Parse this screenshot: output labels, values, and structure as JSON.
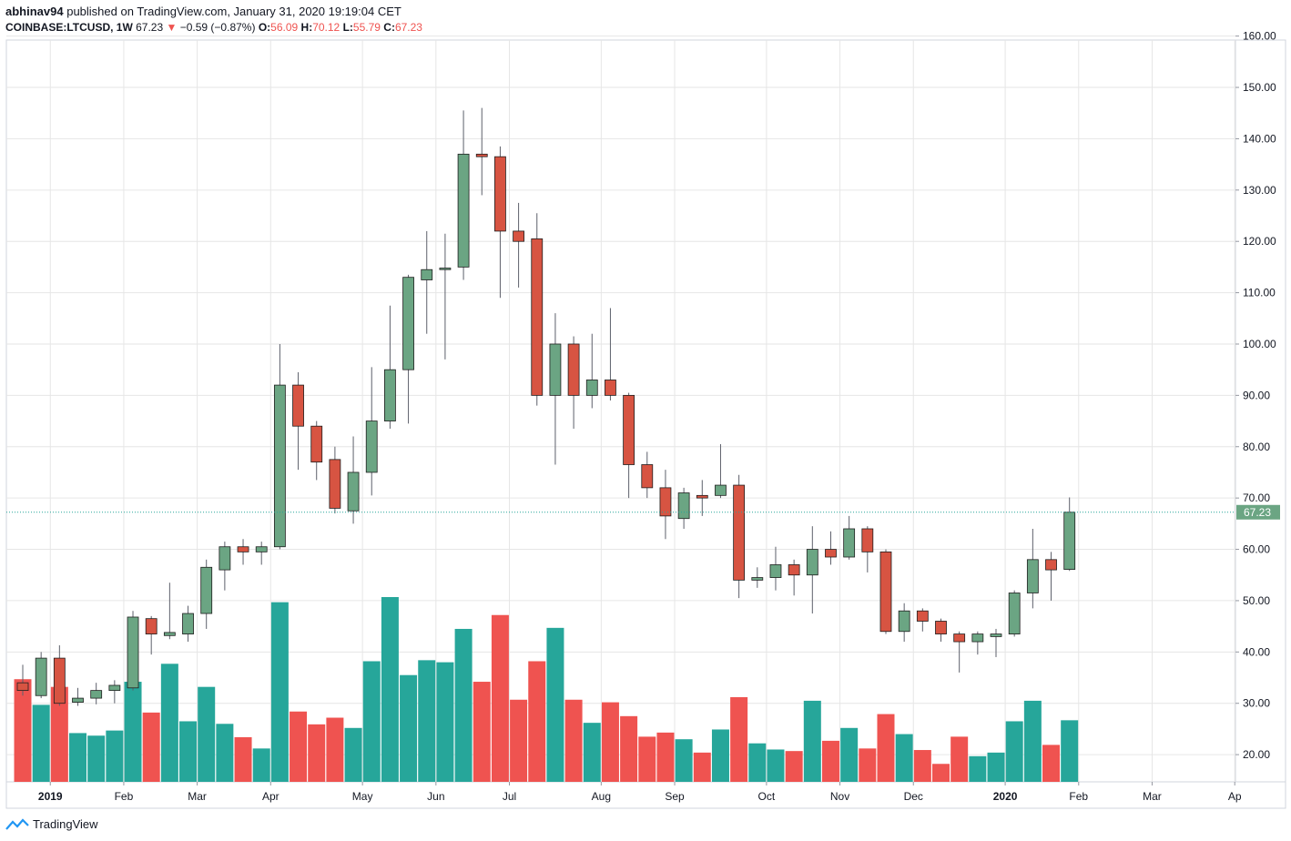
{
  "header": {
    "author": "abhinav94",
    "published_text": "published on TradingView.com, January 31, 2020 19:19:04 CET",
    "symbol": "COINBASE:LTCUSD, 1W",
    "last": "67.23",
    "change_arrow": "▼",
    "change": "−0.59 (−0.87%)",
    "o_label": "O:",
    "o": "56.09",
    "h_label": "H:",
    "h": "70.12",
    "l_label": "L:",
    "l": "55.79",
    "c_label": "C:",
    "c": "67.23"
  },
  "footer": {
    "brand": "TradingView",
    "icon": "tradingview-logo-icon"
  },
  "colors": {
    "up": "#6ba583",
    "down": "#d75442",
    "vol_up": "#26a69a",
    "vol_down": "#ef5350",
    "price_line": "#26a69a",
    "grid": "#e6e6e6"
  },
  "chart_data": {
    "type": "candlestick",
    "price_axis": {
      "ylim": [
        15,
        163
      ],
      "ticks": [
        20,
        30,
        40,
        50,
        60,
        70,
        80,
        90,
        100,
        110,
        120,
        130,
        140,
        150,
        160
      ],
      "tick_labels": [
        "20.00",
        "30.00",
        "40.00",
        "50.00",
        "60.00",
        "70.00",
        "80.00",
        "90.00",
        "100.00",
        "110.00",
        "120.00",
        "130.00",
        "140.00",
        "150.00",
        "160.00"
      ]
    },
    "current_price_label": "67.23",
    "current_price": 67.23,
    "x_labels": [
      {
        "label": "2019",
        "week": 1.5,
        "bold": true
      },
      {
        "label": "Feb",
        "week": 5.5
      },
      {
        "label": "Mar",
        "week": 9.5
      },
      {
        "label": "Apr",
        "week": 13.5
      },
      {
        "label": "May",
        "week": 18.5
      },
      {
        "label": "Jun",
        "week": 22.5
      },
      {
        "label": "Jul",
        "week": 26.5
      },
      {
        "label": "Aug",
        "week": 31.5
      },
      {
        "label": "Sep",
        "week": 35.5
      },
      {
        "label": "Oct",
        "week": 40.5
      },
      {
        "label": "Nov",
        "week": 44.5
      },
      {
        "label": "Dec",
        "week": 48.5
      },
      {
        "label": "2020",
        "week": 53.5,
        "bold": true
      },
      {
        "label": "Feb",
        "week": 57.5
      },
      {
        "label": "Mar",
        "week": 61.5
      },
      {
        "label": "Ap",
        "week": 66
      }
    ],
    "candles": [
      [
        34.0,
        37.5,
        31.5,
        32.5
      ],
      [
        31.5,
        40.0,
        31.0,
        38.8
      ],
      [
        38.8,
        41.3,
        29.5,
        30.0
      ],
      [
        30.2,
        33.0,
        29.5,
        31.0
      ],
      [
        31.0,
        34.0,
        29.8,
        32.5
      ],
      [
        32.5,
        34.5,
        30.0,
        33.5
      ],
      [
        33.0,
        48.0,
        32.5,
        46.8
      ],
      [
        46.5,
        47.0,
        39.5,
        43.5
      ],
      [
        43.2,
        53.5,
        42.5,
        43.8
      ],
      [
        43.5,
        49.0,
        42.0,
        47.5
      ],
      [
        47.5,
        58.0,
        44.5,
        56.5
      ],
      [
        56.0,
        61.5,
        52.0,
        60.5
      ],
      [
        60.5,
        62.0,
        57.0,
        59.5
      ],
      [
        59.5,
        61.5,
        57.0,
        60.5
      ],
      [
        60.5,
        100.0,
        60.0,
        92.0
      ],
      [
        92.0,
        94.5,
        75.5,
        84.0
      ],
      [
        84.0,
        85.0,
        73.5,
        77.0
      ],
      [
        77.5,
        80.0,
        67.0,
        68.0
      ],
      [
        67.5,
        82.0,
        65.0,
        75.0
      ],
      [
        75.0,
        95.5,
        70.5,
        85.0
      ],
      [
        85.0,
        107.5,
        83.5,
        95.0
      ],
      [
        95.0,
        113.5,
        84.5,
        113.0
      ],
      [
        112.5,
        122.0,
        102.0,
        114.5
      ],
      [
        114.5,
        121.5,
        97.0,
        114.8
      ],
      [
        115.0,
        145.5,
        112.5,
        137.0
      ],
      [
        137.0,
        146.0,
        129.0,
        136.5
      ],
      [
        136.5,
        138.5,
        109.0,
        122.0
      ],
      [
        122.0,
        127.5,
        111.0,
        120.0
      ],
      [
        120.5,
        125.5,
        88.0,
        90.0
      ],
      [
        90.0,
        106.0,
        76.5,
        100.0
      ],
      [
        100.0,
        101.5,
        83.5,
        90.0
      ],
      [
        90.0,
        102.0,
        87.5,
        93.0
      ],
      [
        93.0,
        107.0,
        89.0,
        90.0
      ],
      [
        90.0,
        90.5,
        70.0,
        76.5
      ],
      [
        76.5,
        79.0,
        70.0,
        72.0
      ],
      [
        72.0,
        75.5,
        62.0,
        66.5
      ],
      [
        66.0,
        72.0,
        64.0,
        71.0
      ],
      [
        70.5,
        73.5,
        66.5,
        70.0
      ],
      [
        70.5,
        80.5,
        70.0,
        72.5
      ],
      [
        72.5,
        74.5,
        50.5,
        54.0
      ],
      [
        54.0,
        56.5,
        52.5,
        54.5
      ],
      [
        54.5,
        60.5,
        52.0,
        57.0
      ],
      [
        57.0,
        58.0,
        51.0,
        55.0
      ],
      [
        55.0,
        64.5,
        47.5,
        60.0
      ],
      [
        60.0,
        63.5,
        57.0,
        58.5
      ],
      [
        58.5,
        66.5,
        58.0,
        64.0
      ],
      [
        64.0,
        64.5,
        55.5,
        59.5
      ],
      [
        59.5,
        60.0,
        43.5,
        44.0
      ],
      [
        44.0,
        49.5,
        42.0,
        48.0
      ],
      [
        48.0,
        48.5,
        44.0,
        46.0
      ],
      [
        46.0,
        46.5,
        42.0,
        43.5
      ],
      [
        43.5,
        44.0,
        36.0,
        42.0
      ],
      [
        42.0,
        44.0,
        39.5,
        43.5
      ],
      [
        43.0,
        44.5,
        39.0,
        43.5
      ],
      [
        43.5,
        52.0,
        43.0,
        51.5
      ],
      [
        51.5,
        64.0,
        48.5,
        58.0
      ],
      [
        58.0,
        59.5,
        50.0,
        56.0
      ],
      [
        56.09,
        70.12,
        55.79,
        67.23
      ]
    ],
    "volume": [
      {
        "v": 20.0,
        "up": false
      },
      {
        "v": 15.0,
        "up": true
      },
      {
        "v": 18.5,
        "up": false
      },
      {
        "v": 9.5,
        "up": true
      },
      {
        "v": 9.0,
        "up": true
      },
      {
        "v": 10.0,
        "up": true
      },
      {
        "v": 19.5,
        "up": true
      },
      {
        "v": 13.5,
        "up": false
      },
      {
        "v": 23.0,
        "up": true
      },
      {
        "v": 11.8,
        "up": true
      },
      {
        "v": 18.5,
        "up": true
      },
      {
        "v": 11.3,
        "up": true
      },
      {
        "v": 8.7,
        "up": false
      },
      {
        "v": 6.5,
        "up": true
      },
      {
        "v": 35.0,
        "up": true
      },
      {
        "v": 13.7,
        "up": false
      },
      {
        "v": 11.2,
        "up": false
      },
      {
        "v": 12.5,
        "up": false
      },
      {
        "v": 10.5,
        "up": true
      },
      {
        "v": 23.5,
        "up": true
      },
      {
        "v": 36.0,
        "up": true
      },
      {
        "v": 20.8,
        "up": true
      },
      {
        "v": 23.7,
        "up": true
      },
      {
        "v": 23.3,
        "up": true
      },
      {
        "v": 29.8,
        "up": true
      },
      {
        "v": 19.5,
        "up": false
      },
      {
        "v": 32.5,
        "up": false
      },
      {
        "v": 16.0,
        "up": false
      },
      {
        "v": 23.5,
        "up": false
      },
      {
        "v": 30.0,
        "up": true
      },
      {
        "v": 16.0,
        "up": false
      },
      {
        "v": 11.5,
        "up": true
      },
      {
        "v": 15.5,
        "up": false
      },
      {
        "v": 12.8,
        "up": false
      },
      {
        "v": 8.8,
        "up": false
      },
      {
        "v": 9.6,
        "up": false
      },
      {
        "v": 8.3,
        "up": true
      },
      {
        "v": 5.7,
        "up": false
      },
      {
        "v": 10.2,
        "up": true
      },
      {
        "v": 16.5,
        "up": false
      },
      {
        "v": 7.5,
        "up": true
      },
      {
        "v": 6.3,
        "up": true
      },
      {
        "v": 6.0,
        "up": false
      },
      {
        "v": 15.8,
        "up": true
      },
      {
        "v": 8.0,
        "up": false
      },
      {
        "v": 10.5,
        "up": true
      },
      {
        "v": 6.5,
        "up": false
      },
      {
        "v": 13.2,
        "up": false
      },
      {
        "v": 9.3,
        "up": true
      },
      {
        "v": 6.2,
        "up": false
      },
      {
        "v": 3.5,
        "up": false
      },
      {
        "v": 8.8,
        "up": false
      },
      {
        "v": 5.0,
        "up": true
      },
      {
        "v": 5.7,
        "up": true
      },
      {
        "v": 11.8,
        "up": true
      },
      {
        "v": 15.8,
        "up": true
      },
      {
        "v": 7.2,
        "up": false
      },
      {
        "v": 12.0,
        "up": true
      }
    ]
  }
}
